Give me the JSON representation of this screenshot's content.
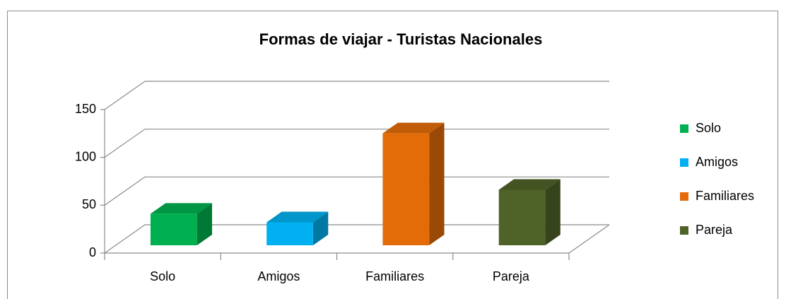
{
  "chart_data": {
    "type": "bar3d",
    "title": "Formas de viajar - Turistas Nacionales",
    "categories": [
      "Solo",
      "Amigos",
      "Familiares",
      "Pareja"
    ],
    "values": [
      33,
      24,
      117,
      58
    ],
    "colors": [
      "#00b050",
      "#00b0f0",
      "#e36c09",
      "#4f6228"
    ],
    "ylim": [
      0,
      150
    ],
    "yticks": [
      0,
      50,
      100,
      150
    ],
    "grid": true,
    "legend": "right"
  }
}
